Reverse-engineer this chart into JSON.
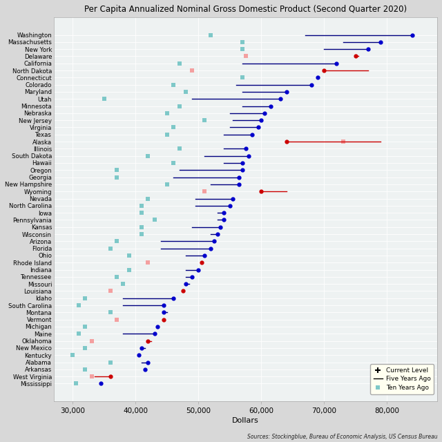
{
  "title": "Per Capita Annualized Nominal Gross Domestic Product (Second Quarter 2020)",
  "xlabel": "Dollars",
  "source": "Sources: Stockingblue, Bureau of Economic Analysis, US Census Bureau",
  "states_data": [
    [
      "Washington",
      84000,
      67000,
      52000,
      false
    ],
    [
      "Massachusetts",
      79000,
      73000,
      57000,
      false
    ],
    [
      "New York",
      77000,
      70000,
      57000,
      false
    ],
    [
      "Delaware",
      75000,
      75500,
      57500,
      true
    ],
    [
      "California",
      72000,
      57000,
      47000,
      false
    ],
    [
      "North Dakota",
      70000,
      77000,
      49000,
      true
    ],
    [
      "Connecticut",
      69000,
      69000,
      57000,
      false
    ],
    [
      "Colorado",
      68000,
      56000,
      46000,
      false
    ],
    [
      "Maryland",
      64000,
      57000,
      48000,
      false
    ],
    [
      "Utah",
      63000,
      49000,
      35000,
      false
    ],
    [
      "Minnesota",
      61500,
      57000,
      47000,
      false
    ],
    [
      "Nebraska",
      60500,
      55000,
      45000,
      false
    ],
    [
      "New Jersey",
      60000,
      55500,
      51000,
      false
    ],
    [
      "Virginia",
      59500,
      55000,
      46000,
      false
    ],
    [
      "Texas",
      58500,
      54000,
      45000,
      false
    ],
    [
      "Alaska",
      64000,
      79000,
      73000,
      true
    ],
    [
      "Illinois",
      57500,
      54000,
      47000,
      false
    ],
    [
      "South Dakota",
      58000,
      51000,
      42000,
      false
    ],
    [
      "Hawaii",
      57000,
      54000,
      46000,
      false
    ],
    [
      "Oregon",
      57000,
      47000,
      37000,
      false
    ],
    [
      "Georgia",
      56500,
      46000,
      37000,
      false
    ],
    [
      "New Hampshire",
      56500,
      52000,
      45000,
      false
    ],
    [
      "Wyoming",
      60000,
      64000,
      51000,
      true
    ],
    [
      "Nevada",
      55500,
      49500,
      42000,
      false
    ],
    [
      "North Carolina",
      55000,
      49500,
      41000,
      false
    ],
    [
      "Iowa",
      54000,
      53000,
      41000,
      false
    ],
    [
      "Pennsylvania",
      54000,
      53000,
      43000,
      false
    ],
    [
      "Kansas",
      53500,
      49000,
      41000,
      false
    ],
    [
      "Wisconsin",
      53000,
      52000,
      41000,
      false
    ],
    [
      "Arizona",
      52500,
      44000,
      37000,
      false
    ],
    [
      "Florida",
      52000,
      44000,
      36000,
      false
    ],
    [
      "Ohio",
      51000,
      48000,
      39000,
      false
    ],
    [
      "Rhode Island",
      50500,
      50500,
      42000,
      true
    ],
    [
      "Indiana",
      50000,
      48000,
      39000,
      false
    ],
    [
      "Tennessee",
      49000,
      48000,
      37000,
      false
    ],
    [
      "Missouri",
      48000,
      48500,
      38000,
      false
    ],
    [
      "Louisiana",
      47500,
      47500,
      36000,
      true
    ],
    [
      "Idaho",
      46000,
      38000,
      32000,
      false
    ],
    [
      "South Carolina",
      44500,
      38000,
      31000,
      false
    ],
    [
      "Montana",
      44500,
      45000,
      36000,
      false
    ],
    [
      "Vermont",
      44500,
      44500,
      37000,
      true
    ],
    [
      "Michigan",
      43500,
      43500,
      32000,
      false
    ],
    [
      "Maine",
      43000,
      38000,
      31000,
      false
    ],
    [
      "Oklahoma",
      42000,
      42500,
      33000,
      true
    ],
    [
      "New Mexico",
      41000,
      41500,
      32000,
      false
    ],
    [
      "Kentucky",
      40500,
      40500,
      30000,
      false
    ],
    [
      "Alabama",
      42000,
      41000,
      36000,
      false
    ],
    [
      "Arkansas",
      41500,
      41500,
      32000,
      false
    ],
    [
      "West Virginia",
      36000,
      33500,
      33000,
      true
    ],
    [
      "Mississippi",
      34500,
      34500,
      30500,
      false
    ]
  ],
  "blue_line": "#000080",
  "blue_dot": "#0000cc",
  "red_line": "#cc0000",
  "red_dot": "#cc0000",
  "teal_sq": "#7ec8c8",
  "pink_sq": "#f4a0a0",
  "bg_color": "#d8d8d8",
  "plot_bg": "#eef2f2",
  "grid_color": "#ffffff",
  "xlim_left": 27000,
  "xlim_right": 88000
}
